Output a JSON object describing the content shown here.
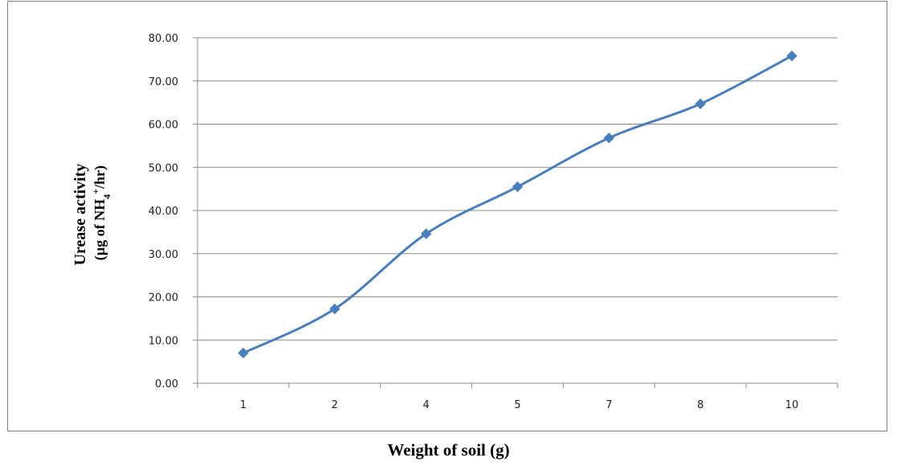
{
  "chart_data": {
    "type": "line",
    "title": "",
    "xlabel": "Weight of soil (g)",
    "ylabel_line1": "Urease activity",
    "ylabel_line2_prefix": "(µg of  NH",
    "ylabel_line2_sub": "4",
    "ylabel_line2_sup": "+",
    "ylabel_line2_suffix": "/hr)",
    "categories": [
      "1",
      "2",
      "4",
      "5",
      "7",
      "8",
      "10"
    ],
    "series": [
      {
        "values": [
          7.0,
          17.2,
          34.6,
          45.5,
          56.8,
          64.7,
          75.8
        ],
        "color": "#4a7ebb"
      }
    ],
    "ylim": [
      0,
      80
    ],
    "yticks": [
      "0.00",
      "10.00",
      "20.00",
      "30.00",
      "40.00",
      "50.00",
      "60.00",
      "70.00",
      "80.00"
    ],
    "grid": true,
    "marker": "diamond"
  }
}
